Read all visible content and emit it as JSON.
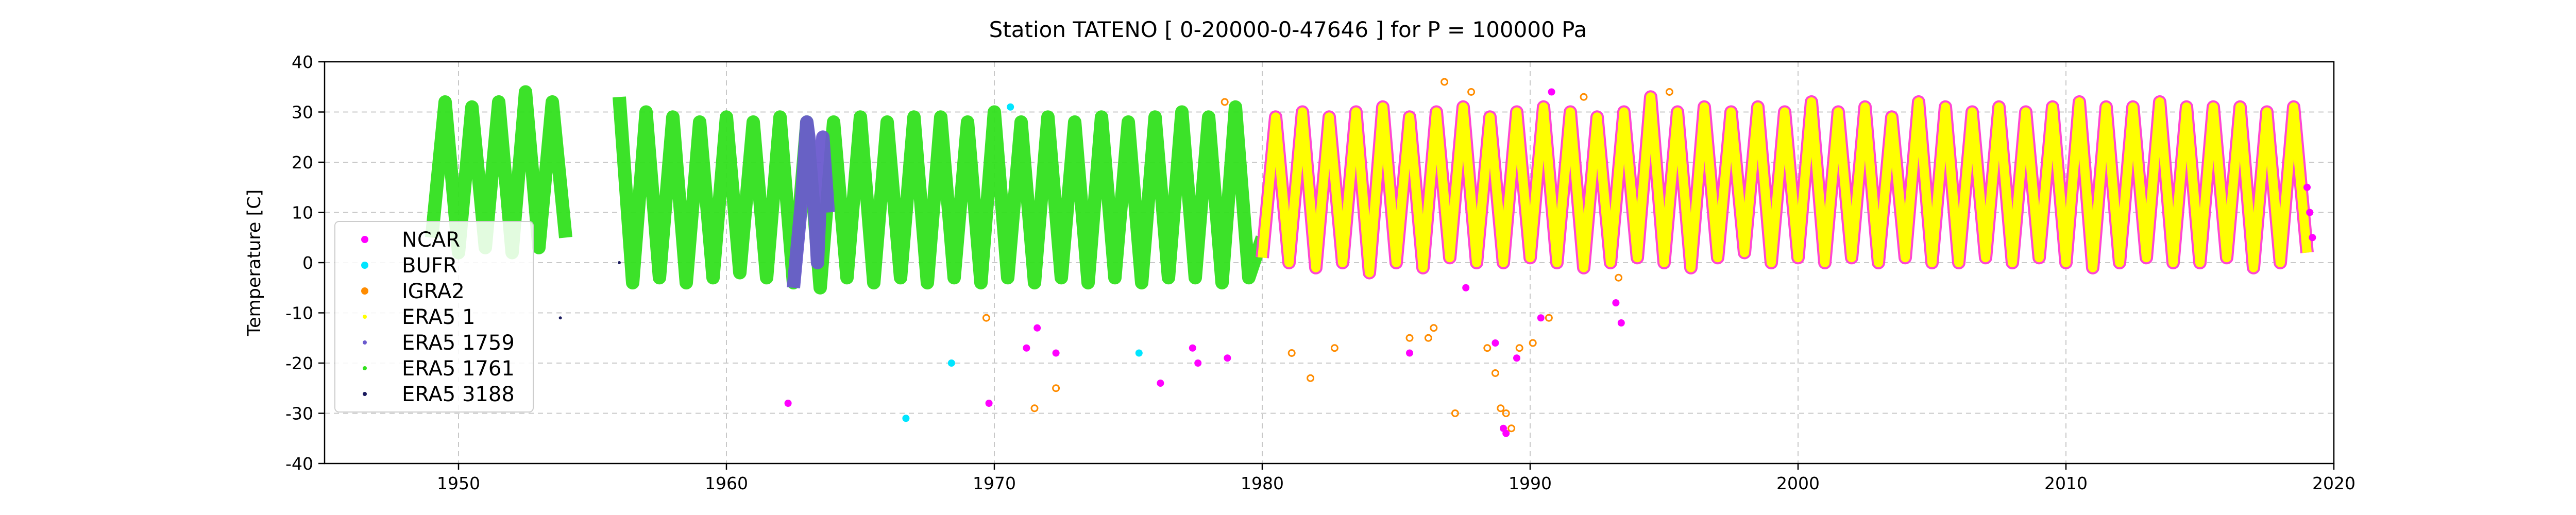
{
  "chart_data": {
    "type": "scatter",
    "title": "Station  TATENO [ 0-20000-0-47646 ]  for P = 100000 Pa",
    "ylabel": "Temperature [C]",
    "xlabel": "",
    "xlim": [
      1945,
      2020
    ],
    "ylim": [
      -40,
      40
    ],
    "x_ticks": [
      1950,
      1960,
      1970,
      1980,
      1990,
      2000,
      2010,
      2020
    ],
    "y_ticks": [
      -40,
      -30,
      -20,
      -10,
      0,
      10,
      20,
      30,
      40
    ],
    "grid": true,
    "legend_position": "lower-left",
    "series": [
      {
        "name": "NCAR",
        "color": "#ff00ff",
        "marker": "filled-circle",
        "x": [
          1962.3,
          1969.8,
          1971.2,
          1971.6,
          1972.3,
          1976.2,
          1977.4,
          1977.6,
          1978.7,
          1985.5,
          1987.6,
          1988.7,
          1989.0,
          1989.1,
          1989.5,
          1990.4,
          1990.8,
          1993.2,
          1993.4,
          2019.0,
          2019.1,
          2019.2
        ],
        "y": [
          -28,
          -28,
          -17,
          -13,
          -18,
          -24,
          -17,
          -20,
          -19,
          -18,
          -5,
          -16,
          -33,
          -34,
          -19,
          -11,
          34,
          -8,
          -12,
          15,
          10,
          5
        ]
      },
      {
        "name": "BUFR",
        "color": "#00e5ff",
        "marker": "filled-circle",
        "x": [
          1966.7,
          1968.4,
          1970.6,
          1975.4
        ],
        "y": [
          -31,
          -20,
          31,
          -18
        ]
      },
      {
        "name": "IGRA2",
        "color": "#ff8c00",
        "marker": "circle",
        "x": [
          1969.7,
          1971.5,
          1972.3,
          1978.6,
          1981.1,
          1981.8,
          1982.7,
          1985.5,
          1986.2,
          1986.4,
          1986.8,
          1987.2,
          1987.8,
          1988.4,
          1988.7,
          1988.9,
          1989.1,
          1989.3,
          1989.6,
          1990.1,
          1990.7,
          1992.0,
          1993.3,
          1995.2
        ],
        "y": [
          -11,
          -29,
          -25,
          32,
          -18,
          -23,
          -17,
          -15,
          -15,
          -13,
          36,
          -30,
          34,
          -17,
          -22,
          -29,
          -30,
          -33,
          -17,
          -16,
          -11,
          33,
          -3,
          34
        ]
      },
      {
        "name": "ERA5 1",
        "color": "#ffff00",
        "marker": "dot",
        "x": [
          1980,
          1980.5,
          1981,
          1981.5,
          1982,
          1982.5,
          1983,
          1983.5,
          1984,
          1984.5,
          1985,
          1985.5,
          1986,
          1986.5,
          1987,
          1987.5,
          1988,
          1988.5,
          1989,
          1989.5,
          1990,
          1990.5,
          1991,
          1991.5,
          1992,
          1992.5,
          1993,
          1993.5,
          1994,
          1994.5,
          1995,
          1995.5,
          1996,
          1996.5,
          1997,
          1997.5,
          1998,
          1998.5,
          1999,
          1999.5,
          2000,
          2000.5,
          2001,
          2001.5,
          2002,
          2002.5,
          2003,
          2003.5,
          2004,
          2004.5,
          2005,
          2005.5,
          2006,
          2006.5,
          2007,
          2007.5,
          2008,
          2008.5,
          2009,
          2009.5,
          2010,
          2010.5,
          2011,
          2011.5,
          2012,
          2012.5,
          2013,
          2013.5,
          2014,
          2014.5,
          2015,
          2015.5,
          2016,
          2016.5,
          2017,
          2017.5,
          2018,
          2018.5,
          2019
        ],
        "y": [
          1,
          29,
          0,
          30,
          -1,
          29,
          0,
          30,
          -2,
          31,
          0,
          29,
          -1,
          30,
          1,
          31,
          0,
          29,
          0,
          30,
          1,
          31,
          0,
          30,
          -1,
          29,
          0,
          30,
          1,
          33,
          0,
          30,
          -1,
          31,
          1,
          30,
          2,
          31,
          0,
          30,
          1,
          32,
          0,
          30,
          1,
          31,
          0,
          29,
          1,
          32,
          0,
          31,
          0,
          30,
          1,
          31,
          0,
          30,
          1,
          31,
          0,
          32,
          -1,
          31,
          0,
          31,
          1,
          32,
          0,
          31,
          0,
          31,
          1,
          31,
          -1,
          30,
          0,
          31,
          2
        ]
      },
      {
        "name": "ERA5 1759",
        "color": "#6a5acd",
        "marker": "dot",
        "x": [
          1962.5,
          1962.8,
          1963.0,
          1963.2,
          1963.4,
          1963.6,
          1963.8
        ],
        "y": [
          -5,
          12,
          28,
          20,
          0,
          25,
          10
        ]
      },
      {
        "name": "ERA5 1761",
        "color": "#32e01e",
        "marker": "dot",
        "x": [
          1949,
          1949.5,
          1950,
          1950.5,
          1951,
          1951.5,
          1952,
          1952.5,
          1953,
          1953.5,
          1954,
          1956,
          1956.5,
          1957,
          1957.5,
          1958,
          1958.5,
          1959,
          1959.5,
          1960,
          1960.5,
          1961,
          1961.5,
          1962,
          1962.5,
          1963,
          1963.5,
          1964,
          1964.5,
          1965,
          1965.5,
          1966,
          1966.5,
          1967,
          1967.5,
          1968,
          1968.5,
          1969,
          1969.5,
          1970,
          1970.5,
          1971,
          1971.5,
          1972,
          1972.5,
          1973,
          1973.5,
          1974,
          1974.5,
          1975,
          1975.5,
          1976,
          1976.5,
          1977,
          1977.5,
          1978,
          1978.5,
          1979,
          1979.5,
          1980
        ],
        "y": [
          5,
          32,
          2,
          31,
          3,
          32,
          2,
          34,
          3,
          32,
          5,
          33,
          -4,
          30,
          -3,
          29,
          -4,
          28,
          -3,
          29,
          -2,
          28,
          -3,
          29,
          -4,
          28,
          -5,
          28,
          -3,
          29,
          -4,
          28,
          -3,
          29,
          -4,
          29,
          -3,
          28,
          -4,
          30,
          -3,
          28,
          -4,
          29,
          -3,
          28,
          -4,
          29,
          -3,
          28,
          -4,
          29,
          -3,
          30,
          -3,
          29,
          -4,
          31,
          -3,
          5
        ]
      },
      {
        "name": "ERA5 3188",
        "color": "#1a1a5e",
        "marker": "dot",
        "x": [
          1953.8,
          1956.0
        ],
        "y": [
          -11,
          0
        ]
      }
    ]
  }
}
